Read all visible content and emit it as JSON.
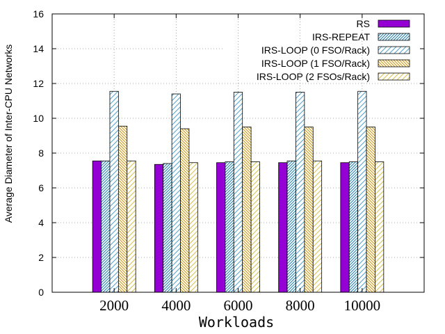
{
  "chart_data": {
    "type": "bar",
    "xlabel": "Workloads",
    "ylabel": "Average Diameter of Inter-CPU Networks",
    "categories": [
      "2000",
      "4000",
      "6000",
      "8000",
      "10000"
    ],
    "ylim": [
      0,
      16
    ],
    "yticks": [
      "0",
      "2",
      "4",
      "6",
      "8",
      "10",
      "12",
      "14",
      "16"
    ],
    "grid": true,
    "legend_position": "top-right",
    "series": [
      {
        "name": "RS",
        "values": [
          7.55,
          7.35,
          7.45,
          7.45,
          7.45
        ],
        "color": "#9400d3",
        "pattern": "solid"
      },
      {
        "name": "IRS-REPEAT",
        "values": [
          7.55,
          7.4,
          7.5,
          7.55,
          7.5
        ],
        "color": "#1a7ba6",
        "pattern": "dense-diagonal"
      },
      {
        "name": "IRS-LOOP (0 FSO/Rack)",
        "values": [
          11.55,
          11.4,
          11.5,
          11.5,
          11.55
        ],
        "color": "#55a0c8",
        "pattern": "diagonal"
      },
      {
        "name": "IRS-LOOP (1 FSO/Rack)",
        "values": [
          9.55,
          9.4,
          9.5,
          9.5,
          9.5
        ],
        "color": "#c8960a",
        "pattern": "dense-diagonal"
      },
      {
        "name": "IRS-LOOP (2 FSOs/Rack)",
        "values": [
          7.55,
          7.45,
          7.5,
          7.55,
          7.5
        ],
        "color": "#d8c050",
        "pattern": "diagonal"
      }
    ]
  }
}
